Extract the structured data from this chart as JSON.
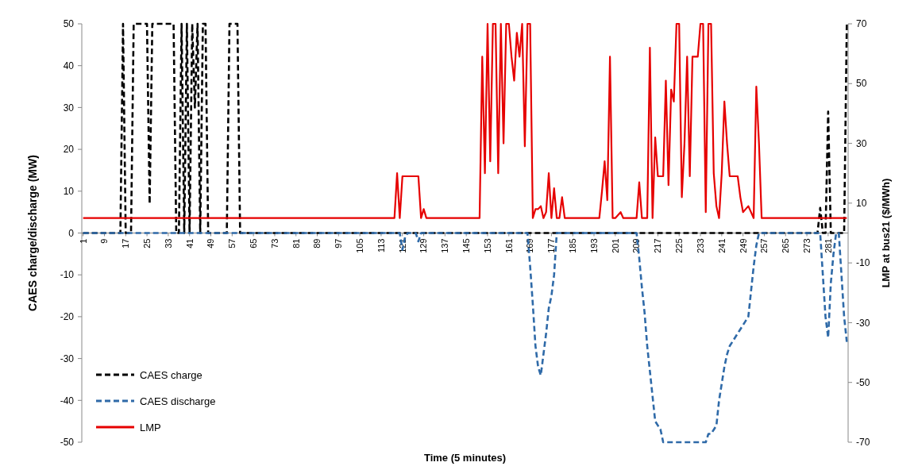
{
  "chart_data": {
    "type": "line",
    "xlabel": "Time (5 minutes)",
    "ylabel": "CAES charge/discharge (MW)",
    "y2label": "LMP at bus21 ($/MWh)",
    "x": [
      1,
      2,
      3,
      4,
      5,
      6,
      7,
      8,
      9,
      10,
      11,
      12,
      13,
      14,
      15,
      16,
      17,
      18,
      19,
      20,
      21,
      22,
      23,
      24,
      25,
      26,
      27,
      28,
      29,
      30,
      31,
      32,
      33,
      34,
      35,
      36,
      37,
      38,
      39,
      40,
      41,
      42,
      43,
      44,
      45,
      46,
      47,
      48,
      49,
      50,
      51,
      52,
      53,
      54,
      55,
      56,
      57,
      58,
      59,
      60,
      61,
      62,
      63,
      64,
      65,
      66,
      67,
      68,
      69,
      70,
      71,
      72,
      73,
      74,
      75,
      76,
      77,
      78,
      79,
      80,
      81,
      82,
      83,
      84,
      85,
      86,
      87,
      88,
      89,
      90,
      91,
      92,
      93,
      94,
      95,
      96,
      97,
      98,
      99,
      100,
      101,
      102,
      103,
      104,
      105,
      106,
      107,
      108,
      109,
      110,
      111,
      112,
      113,
      114,
      115,
      116,
      117,
      118,
      119,
      120,
      121,
      122,
      123,
      124,
      125,
      126,
      127,
      128,
      129,
      130,
      131,
      132,
      133,
      134,
      135,
      136,
      137,
      138,
      139,
      140,
      141,
      142,
      143,
      144,
      145,
      146,
      147,
      148,
      149,
      150,
      151,
      152,
      153,
      154,
      155,
      156,
      157,
      158,
      159,
      160,
      161,
      162,
      163,
      164,
      165,
      166,
      167,
      168,
      169,
      170,
      171,
      172,
      173,
      174,
      175,
      176,
      177,
      178,
      179,
      180,
      181,
      182,
      183,
      184,
      185,
      186,
      187,
      188,
      189,
      190,
      191,
      192,
      193,
      194,
      195,
      196,
      197,
      198,
      199,
      200,
      201,
      202,
      203,
      204,
      205,
      206,
      207,
      208,
      209,
      210,
      211,
      212,
      213,
      214,
      215,
      216,
      217,
      218,
      219,
      220,
      221,
      222,
      223,
      224,
      225,
      226,
      227,
      228,
      229,
      230,
      231,
      232,
      233,
      234,
      235,
      236,
      237,
      238,
      239,
      240,
      241,
      242,
      243,
      244,
      245,
      246,
      247,
      248,
      249,
      250,
      251,
      252,
      253,
      254,
      255,
      256,
      257,
      258,
      259,
      260,
      261,
      262,
      263,
      264,
      265,
      266,
      267,
      268,
      269,
      270,
      271,
      272,
      273,
      274,
      275,
      276,
      277,
      278,
      279,
      280,
      281,
      282,
      283,
      284,
      285,
      286,
      287,
      288
    ],
    "xlim": [
      0.5,
      288.5
    ],
    "xticks": [
      1,
      9,
      17,
      25,
      33,
      41,
      49,
      57,
      65,
      73,
      81,
      89,
      97,
      105,
      113,
      121,
      129,
      137,
      145,
      153,
      161,
      169,
      177,
      185,
      193,
      201,
      209,
      217,
      225,
      233,
      241,
      249,
      257,
      265,
      273,
      281
    ],
    "ylim": [
      -50,
      50
    ],
    "yticks": [
      -50,
      -40,
      -30,
      -20,
      -10,
      0,
      10,
      20,
      30,
      40,
      50
    ],
    "y2lim": [
      -70,
      70
    ],
    "y2ticks": [
      -70,
      -50,
      -30,
      -10,
      10,
      30,
      50,
      70
    ],
    "legend": "bottom left",
    "grid": false,
    "series": [
      {
        "name": "CAES charge",
        "color": "#000000",
        "line_style": "dashed",
        "values": [
          0,
          0,
          0,
          0,
          0,
          0,
          0,
          0,
          0,
          0,
          0,
          0,
          0,
          0,
          0,
          50,
          0,
          0,
          0,
          50,
          50,
          50,
          50,
          50,
          50,
          7,
          50,
          50,
          50,
          50,
          50,
          50,
          50,
          50,
          50,
          0,
          0,
          50,
          0,
          50,
          0,
          50,
          30,
          50,
          0,
          50,
          50,
          0,
          0,
          0,
          0,
          0,
          0,
          0,
          0,
          50,
          50,
          50,
          50,
          0,
          0,
          0,
          0,
          0,
          0,
          0,
          0,
          0,
          0,
          0,
          0,
          0,
          0,
          0,
          0,
          0,
          0,
          0,
          0,
          0,
          0,
          0,
          0,
          0,
          0,
          0,
          0,
          0,
          0,
          0,
          0,
          0,
          0,
          0,
          0,
          0,
          0,
          0,
          0,
          0,
          0,
          0,
          0,
          0,
          0,
          0,
          0,
          0,
          0,
          0,
          0,
          0,
          0,
          0,
          0,
          0,
          0,
          0,
          0,
          0,
          0,
          0,
          0,
          0,
          0,
          0,
          0,
          0,
          0,
          0,
          0,
          0,
          0,
          0,
          0,
          0,
          0,
          0,
          0,
          0,
          0,
          0,
          0,
          0,
          0,
          0,
          0,
          0,
          0,
          0,
          0,
          0,
          0,
          0,
          0,
          0,
          0,
          0,
          0,
          0,
          0,
          0,
          0,
          0,
          0,
          0,
          0,
          0,
          0,
          0,
          0,
          0,
          0,
          0,
          0,
          0,
          0,
          0,
          0,
          0,
          0,
          0,
          0,
          0,
          0,
          0,
          0,
          0,
          0,
          0,
          0,
          0,
          0,
          0,
          0,
          0,
          0,
          0,
          0,
          0,
          0,
          0,
          0,
          0,
          0,
          0,
          0,
          0,
          0,
          0,
          0,
          0,
          0,
          0,
          0,
          0,
          0,
          0,
          0,
          0,
          0,
          0,
          0,
          0,
          0,
          0,
          0,
          0,
          0,
          0,
          0,
          0,
          0,
          0,
          0,
          0,
          0,
          0,
          0,
          0,
          0,
          0,
          0,
          0,
          0,
          0,
          0,
          0,
          0,
          0,
          0,
          0,
          0,
          0,
          0,
          0,
          0,
          0,
          0,
          0,
          0,
          0,
          0,
          0,
          0,
          0,
          0,
          0,
          0,
          0,
          0,
          0,
          0,
          0,
          0,
          0,
          0,
          6,
          0,
          0,
          29,
          0,
          0,
          0,
          0,
          0,
          0,
          50
        ]
      },
      {
        "name": "CAES discharge",
        "color": "#2f6aa8",
        "line_style": "dashed",
        "values": [
          0,
          0,
          0,
          0,
          0,
          0,
          0,
          0,
          0,
          0,
          0,
          0,
          0,
          0,
          0,
          0,
          0,
          0,
          0,
          0,
          0,
          0,
          0,
          0,
          0,
          0,
          0,
          0,
          0,
          0,
          0,
          0,
          0,
          0,
          0,
          0,
          0,
          0,
          0,
          0,
          0,
          0,
          0,
          0,
          0,
          0,
          0,
          0,
          0,
          0,
          0,
          0,
          0,
          0,
          0,
          0,
          0,
          0,
          0,
          0,
          0,
          0,
          0,
          0,
          0,
          0,
          0,
          0,
          0,
          0,
          0,
          0,
          0,
          0,
          0,
          0,
          0,
          0,
          0,
          0,
          0,
          0,
          0,
          0,
          0,
          0,
          0,
          0,
          0,
          0,
          0,
          0,
          0,
          0,
          0,
          0,
          0,
          0,
          0,
          0,
          0,
          0,
          0,
          0,
          0,
          0,
          0,
          0,
          0,
          0,
          0,
          0,
          0,
          0,
          0,
          0,
          0,
          0,
          0,
          0,
          -4,
          -1,
          0,
          0,
          0,
          0,
          -2,
          0,
          0,
          0,
          0,
          0,
          0,
          0,
          0,
          0,
          0,
          0,
          0,
          0,
          0,
          0,
          0,
          0,
          0,
          0,
          0,
          0,
          0,
          0,
          0,
          0,
          0,
          0,
          0,
          0,
          0,
          0,
          0,
          0,
          0,
          0,
          0,
          0,
          0,
          0,
          0,
          0,
          -8,
          -17,
          -27,
          -32,
          -34,
          -29,
          -24,
          -18,
          -15,
          -10,
          0,
          0,
          0,
          0,
          0,
          0,
          0,
          0,
          0,
          0,
          0,
          0,
          0,
          0,
          0,
          0,
          0,
          0,
          0,
          0,
          0,
          0,
          0,
          0,
          0,
          0,
          0,
          0,
          0,
          0,
          0,
          -6,
          -13,
          -19,
          -27,
          -33,
          -39,
          -45,
          -46,
          -47,
          -50,
          -50,
          -50,
          -50,
          -50,
          -50,
          -50,
          -50,
          -50,
          -50,
          -50,
          -50,
          -50,
          -50,
          -50,
          -50,
          -50,
          -48,
          -48,
          -47,
          -46,
          -40,
          -36,
          -32,
          -29,
          -27,
          -26,
          -25,
          -24,
          -23,
          -22,
          -21,
          -20,
          -14,
          -8,
          -3,
          0,
          0,
          0,
          0,
          0,
          0,
          0,
          0,
          0,
          0,
          0,
          0,
          0,
          0,
          0,
          0,
          0,
          0,
          0,
          0,
          0,
          0,
          0,
          0,
          -10,
          -20,
          -25,
          -12,
          -5,
          0,
          0,
          -10,
          -20,
          -26
        ]
      },
      {
        "name": "LMP",
        "color": "#e60000",
        "line_style": "solid",
        "axis": "y2",
        "values": [
          5,
          5,
          5,
          5,
          5,
          5,
          5,
          5,
          5,
          5,
          5,
          5,
          5,
          5,
          5,
          5,
          5,
          5,
          5,
          5,
          5,
          5,
          5,
          5,
          5,
          5,
          5,
          5,
          5,
          5,
          5,
          5,
          5,
          5,
          5,
          5,
          5,
          5,
          5,
          5,
          5,
          5,
          5,
          5,
          5,
          5,
          5,
          5,
          5,
          5,
          5,
          5,
          5,
          5,
          5,
          5,
          5,
          5,
          5,
          5,
          5,
          5,
          5,
          5,
          5,
          5,
          5,
          5,
          5,
          5,
          5,
          5,
          5,
          5,
          5,
          5,
          5,
          5,
          5,
          5,
          5,
          5,
          5,
          5,
          5,
          5,
          5,
          5,
          5,
          5,
          5,
          5,
          5,
          5,
          5,
          5,
          5,
          5,
          5,
          5,
          5,
          5,
          5,
          5,
          5,
          5,
          5,
          5,
          5,
          5,
          5,
          5,
          5,
          5,
          5,
          5,
          5,
          5,
          20,
          5,
          19,
          19,
          19,
          19,
          19,
          19,
          19,
          5,
          8,
          5,
          5,
          5,
          5,
          5,
          5,
          5,
          5,
          5,
          5,
          5,
          5,
          5,
          5,
          5,
          5,
          5,
          5,
          5,
          5,
          5,
          59,
          20,
          70,
          24,
          70,
          70,
          20,
          70,
          30,
          70,
          70,
          59,
          51,
          67,
          59,
          70,
          29,
          70,
          70,
          5,
          8,
          8,
          9,
          5,
          7,
          20,
          5,
          15,
          5,
          5,
          12,
          5,
          5,
          5,
          5,
          5,
          5,
          5,
          5,
          5,
          5,
          5,
          5,
          5,
          5,
          14,
          24,
          11,
          59,
          5,
          5,
          6,
          7,
          5,
          5,
          5,
          5,
          5,
          5,
          17,
          5,
          5,
          5,
          62,
          5,
          32,
          19,
          19,
          19,
          51,
          16,
          48,
          44,
          70,
          70,
          12,
          30,
          59,
          19,
          59,
          59,
          59,
          70,
          70,
          7,
          70,
          70,
          20,
          9,
          5,
          20,
          44,
          30,
          19,
          19,
          19,
          19,
          12,
          7,
          8,
          9,
          7,
          5,
          49,
          30,
          5,
          5,
          5,
          5,
          5,
          5,
          5,
          5,
          5,
          5,
          5,
          5,
          5,
          5,
          5,
          5,
          5,
          5,
          5,
          5,
          5,
          5,
          5,
          5,
          5,
          5,
          5,
          5,
          5,
          5,
          5,
          5,
          5
        ]
      }
    ]
  }
}
